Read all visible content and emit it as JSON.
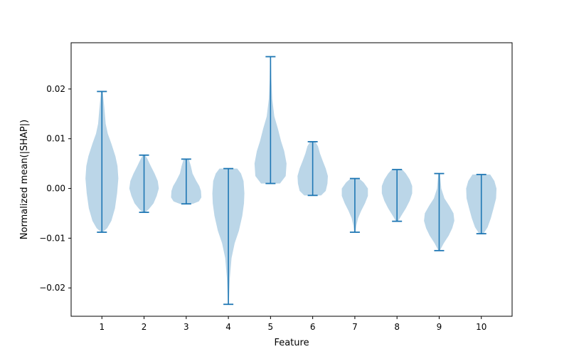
{
  "chart_data": {
    "type": "violin",
    "title": "",
    "xlabel": "Feature",
    "ylabel": "Normalized mean(|SHAP|)",
    "categories": [
      "1",
      "2",
      "3",
      "4",
      "5",
      "6",
      "7",
      "8",
      "9",
      "10"
    ],
    "ylim": [
      -0.0257,
      0.0293
    ],
    "yticks": [
      -0.02,
      -0.01,
      0.0,
      0.01,
      0.02
    ],
    "ytick_labels": [
      "−0.02",
      "−0.01",
      "0.00",
      "0.01",
      "0.02"
    ],
    "grid": false,
    "colors": {
      "violin_fill": "#1f77b4",
      "violin_alpha": 0.3,
      "line": "#1f77b4"
    },
    "violins": [
      {
        "feature": "1",
        "min": -0.0088,
        "max": 0.0195,
        "profile": [
          [
            -0.0088,
            0.03
          ],
          [
            -0.008,
            0.25
          ],
          [
            -0.0065,
            0.45
          ],
          [
            -0.004,
            0.62
          ],
          [
            -0.001,
            0.72
          ],
          [
            0.002,
            0.78
          ],
          [
            0.0045,
            0.74
          ],
          [
            0.0065,
            0.64
          ],
          [
            0.009,
            0.45
          ],
          [
            0.011,
            0.28
          ],
          [
            0.013,
            0.18
          ],
          [
            0.016,
            0.12
          ],
          [
            0.0195,
            0.04
          ]
        ]
      },
      {
        "feature": "2",
        "min": -0.0048,
        "max": 0.0067,
        "profile": [
          [
            -0.0048,
            0.05
          ],
          [
            -0.0042,
            0.22
          ],
          [
            -0.003,
            0.45
          ],
          [
            -0.0015,
            0.6
          ],
          [
            0.0,
            0.7
          ],
          [
            0.0015,
            0.65
          ],
          [
            0.003,
            0.5
          ],
          [
            0.0045,
            0.32
          ],
          [
            0.006,
            0.15
          ],
          [
            0.0067,
            0.05
          ]
        ]
      },
      {
        "feature": "3",
        "min": -0.0031,
        "max": 0.0059,
        "profile": [
          [
            -0.0031,
            0.3
          ],
          [
            -0.0026,
            0.6
          ],
          [
            -0.0018,
            0.72
          ],
          [
            -0.0005,
            0.7
          ],
          [
            0.0005,
            0.62
          ],
          [
            0.0015,
            0.48
          ],
          [
            0.003,
            0.3
          ],
          [
            0.0045,
            0.22
          ],
          [
            0.0055,
            0.15
          ],
          [
            0.0059,
            0.12
          ]
        ]
      },
      {
        "feature": "4",
        "min": -0.0233,
        "max": 0.004,
        "profile": [
          [
            -0.0233,
            0.02
          ],
          [
            -0.021,
            0.04
          ],
          [
            -0.018,
            0.07
          ],
          [
            -0.014,
            0.15
          ],
          [
            -0.011,
            0.3
          ],
          [
            -0.0085,
            0.5
          ],
          [
            -0.0055,
            0.66
          ],
          [
            -0.003,
            0.74
          ],
          [
            -0.001,
            0.76
          ],
          [
            0.0015,
            0.72
          ],
          [
            0.003,
            0.6
          ],
          [
            0.004,
            0.42
          ]
        ]
      },
      {
        "feature": "5",
        "min": 0.001,
        "max": 0.0265,
        "profile": [
          [
            0.001,
            0.45
          ],
          [
            0.0025,
            0.72
          ],
          [
            0.005,
            0.76
          ],
          [
            0.0075,
            0.65
          ],
          [
            0.0095,
            0.5
          ],
          [
            0.012,
            0.35
          ],
          [
            0.0145,
            0.18
          ],
          [
            0.018,
            0.08
          ],
          [
            0.022,
            0.04
          ],
          [
            0.0265,
            0.02
          ]
        ]
      },
      {
        "feature": "6",
        "min": -0.0014,
        "max": 0.0094,
        "profile": [
          [
            -0.0014,
            0.4
          ],
          [
            -0.0005,
            0.62
          ],
          [
            0.001,
            0.7
          ],
          [
            0.0025,
            0.72
          ],
          [
            0.004,
            0.62
          ],
          [
            0.0055,
            0.48
          ],
          [
            0.007,
            0.35
          ],
          [
            0.0085,
            0.25
          ],
          [
            0.0094,
            0.12
          ]
        ]
      },
      {
        "feature": "7",
        "min": -0.0088,
        "max": 0.002,
        "profile": [
          [
            -0.0088,
            0.03
          ],
          [
            -0.0075,
            0.07
          ],
          [
            -0.006,
            0.15
          ],
          [
            -0.0045,
            0.3
          ],
          [
            -0.003,
            0.48
          ],
          [
            -0.0015,
            0.62
          ],
          [
            0.0,
            0.62
          ],
          [
            0.0012,
            0.42
          ],
          [
            0.002,
            0.2
          ]
        ]
      },
      {
        "feature": "8",
        "min": -0.0066,
        "max": 0.0038,
        "profile": [
          [
            -0.0066,
            0.05
          ],
          [
            -0.0055,
            0.2
          ],
          [
            -0.004,
            0.42
          ],
          [
            -0.0025,
            0.6
          ],
          [
            -0.001,
            0.72
          ],
          [
            0.0005,
            0.72
          ],
          [
            0.0018,
            0.6
          ],
          [
            0.003,
            0.42
          ],
          [
            0.0038,
            0.25
          ]
        ]
      },
      {
        "feature": "9",
        "min": -0.0125,
        "max": 0.003,
        "profile": [
          [
            -0.0125,
            0.03
          ],
          [
            -0.011,
            0.22
          ],
          [
            -0.0095,
            0.45
          ],
          [
            -0.008,
            0.62
          ],
          [
            -0.0065,
            0.72
          ],
          [
            -0.005,
            0.68
          ],
          [
            -0.0035,
            0.48
          ],
          [
            -0.002,
            0.25
          ],
          [
            0.0,
            0.1
          ],
          [
            0.003,
            0.04
          ]
        ]
      },
      {
        "feature": "10",
        "min": -0.0091,
        "max": 0.0028,
        "profile": [
          [
            -0.0091,
            0.1
          ],
          [
            -0.0078,
            0.3
          ],
          [
            -0.006,
            0.45
          ],
          [
            -0.004,
            0.58
          ],
          [
            -0.002,
            0.7
          ],
          [
            0.0,
            0.72
          ],
          [
            0.0015,
            0.62
          ],
          [
            0.0028,
            0.42
          ]
        ]
      }
    ]
  }
}
